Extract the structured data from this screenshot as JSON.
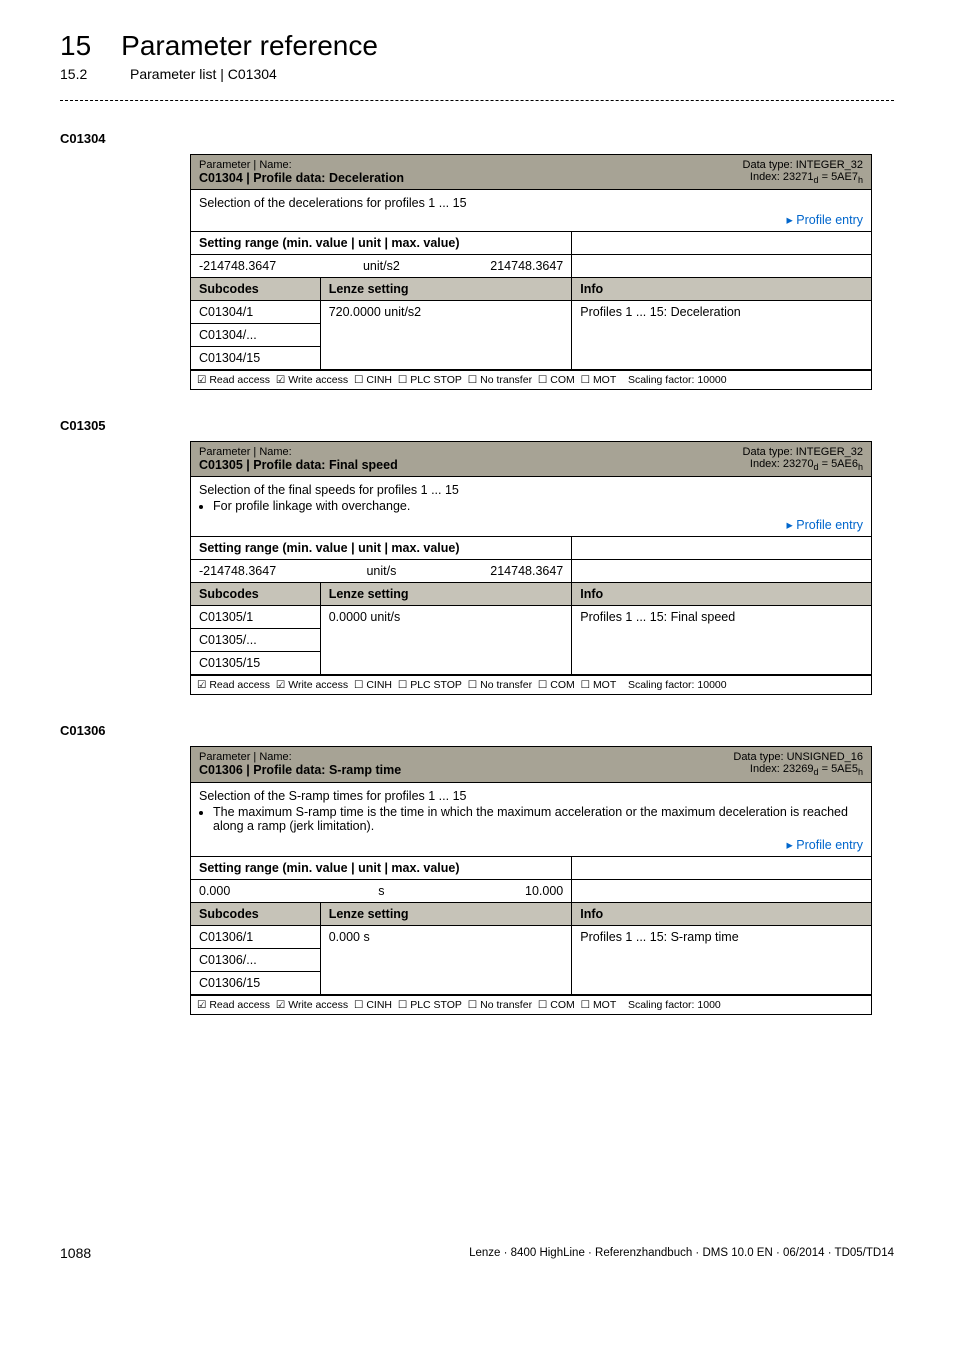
{
  "header": {
    "chapter_num": "15",
    "chapter_title": "Parameter reference",
    "section_num": "15.2",
    "section_title": "Parameter list | C01304"
  },
  "blocks": [
    {
      "code_label": "C01304",
      "title_code": "C01304 | Profile data: Deceleration",
      "data_type": "Data type: INTEGER_32",
      "index_line": "Index: 23271",
      "index_d": "d",
      "index_eq": " = 5AE7",
      "index_h": "h",
      "desc_lines": [
        "Selection of the decelerations for profiles 1 ... 15"
      ],
      "desc_bullets": [],
      "link_text": "Profile entry",
      "range_min": "-214748.3647",
      "range_unit": "unit/s2",
      "range_max": "214748.3647",
      "sub_rows": [
        {
          "sub": "C01304/1",
          "lenze": "720.0000 unit/s2",
          "info": "Profiles 1 ... 15: Deceleration"
        },
        {
          "sub": "C01304/...",
          "lenze": "",
          "info": ""
        },
        {
          "sub": "C01304/15",
          "lenze": "",
          "info": ""
        }
      ],
      "footer_scaling": "Scaling factor: 10000"
    },
    {
      "code_label": "C01305",
      "title_code": "C01305 | Profile data: Final speed",
      "data_type": "Data type: INTEGER_32",
      "index_line": "Index: 23270",
      "index_d": "d",
      "index_eq": " = 5AE6",
      "index_h": "h",
      "desc_lines": [
        "Selection of the final speeds for profiles 1 ... 15"
      ],
      "desc_bullets": [
        "For profile linkage with overchange."
      ],
      "link_text": "Profile entry",
      "range_min": "-214748.3647",
      "range_unit": "unit/s",
      "range_max": "214748.3647",
      "sub_rows": [
        {
          "sub": "C01305/1",
          "lenze": "0.0000 unit/s",
          "info": "Profiles 1 ... 15: Final speed"
        },
        {
          "sub": "C01305/...",
          "lenze": "",
          "info": ""
        },
        {
          "sub": "C01305/15",
          "lenze": "",
          "info": ""
        }
      ],
      "footer_scaling": "Scaling factor: 10000"
    },
    {
      "code_label": "C01306",
      "title_code": "C01306 | Profile data: S-ramp time",
      "data_type": "Data type: UNSIGNED_16",
      "index_line": "Index: 23269",
      "index_d": "d",
      "index_eq": " = 5AE5",
      "index_h": "h",
      "desc_lines": [
        "Selection of the S-ramp times for profiles 1 ... 15"
      ],
      "desc_bullets": [
        "The maximum S-ramp time is the time in which the maximum acceleration or the maximum deceleration is reached along a ramp (jerk limitation)."
      ],
      "link_text": "Profile entry",
      "range_min": "0.000",
      "range_unit": "s",
      "range_max": "10.000",
      "sub_rows": [
        {
          "sub": "C01306/1",
          "lenze": "0.000 s",
          "info": "Profiles 1 ... 15: S-ramp time"
        },
        {
          "sub": "C01306/...",
          "lenze": "",
          "info": ""
        },
        {
          "sub": "C01306/15",
          "lenze": "",
          "info": ""
        }
      ],
      "footer_scaling": "Scaling factor: 1000"
    }
  ],
  "labels": {
    "param_name": "Parameter | Name:",
    "setting_range": "Setting range (min. value | unit | max. value)",
    "subcodes": "Subcodes",
    "lenze_setting": "Lenze setting",
    "info": "Info",
    "read_access": "Read access",
    "write_access": "Write access",
    "cinh": "CINH",
    "plc_stop": "PLC STOP",
    "no_transfer": "No transfer",
    "com": "COM",
    "mot": "MOT"
  },
  "footer": {
    "page_number": "1088",
    "text": "Lenze · 8400 HighLine · Referenzhandbuch · DMS 10.0 EN · 06/2014 · TD05/TD14"
  }
}
